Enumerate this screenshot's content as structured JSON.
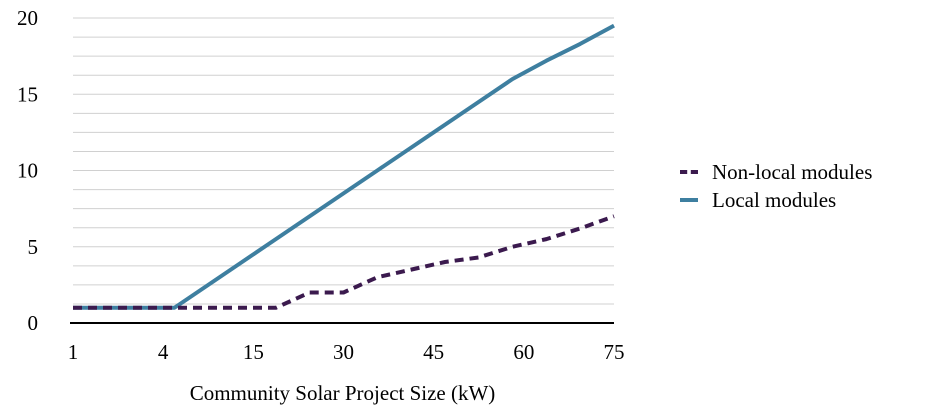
{
  "chart_data": {
    "type": "line",
    "categories": [
      "1",
      "4",
      "15",
      "30",
      "45",
      "60",
      "75"
    ],
    "x": [
      1,
      2,
      3,
      4,
      5,
      6,
      7,
      8,
      9,
      10,
      11,
      12,
      13,
      14,
      15,
      16,
      17
    ],
    "series": [
      {
        "name": "Non-local modules",
        "color": "#3b1a4e",
        "style": "dashed",
        "values": [
          1,
          1,
          1,
          1,
          1,
          1,
          1,
          2,
          2,
          3,
          3.5,
          4,
          4.3,
          5,
          5.5,
          6.2,
          7
        ]
      },
      {
        "name": "Local modules",
        "color": "#3e7fa0",
        "style": "solid",
        "values": [
          1,
          1,
          1,
          1,
          2.5,
          4,
          5.5,
          7,
          8.5,
          10,
          11.5,
          13,
          14.5,
          16,
          17.2,
          18.3,
          19.5
        ]
      }
    ],
    "title": "",
    "xlabel": "Community Solar Project Size (kW)",
    "ylabel": "",
    "ylim": [
      0,
      20
    ],
    "yticks": [
      "0",
      "5",
      "10",
      "15",
      "20"
    ],
    "grid": true,
    "legend_position": "right"
  }
}
